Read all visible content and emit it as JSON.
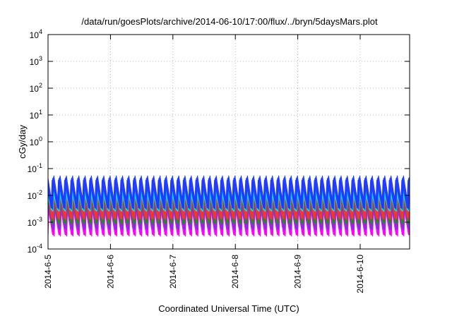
{
  "chart_data": {
    "type": "line",
    "title": "/data/run/goesPlots/archive/2014-06-10/17:00/flux/../bryn/5daysMars.plot",
    "xlabel": "Coordinated Universal Time (UTC)",
    "ylabel": "cGy/day",
    "yscale": "log",
    "ylim": [
      0.0001,
      10000
    ],
    "y_ticks": [
      {
        "value": 0.0001,
        "base": "10",
        "exp": "-4"
      },
      {
        "value": 0.001,
        "base": "10",
        "exp": "-3"
      },
      {
        "value": 0.01,
        "base": "10",
        "exp": "-2"
      },
      {
        "value": 0.1,
        "base": "10",
        "exp": "-1"
      },
      {
        "value": 1,
        "base": "10",
        "exp": "0"
      },
      {
        "value": 10,
        "base": "10",
        "exp": "1"
      },
      {
        "value": 100,
        "base": "10",
        "exp": "2"
      },
      {
        "value": 1000,
        "base": "10",
        "exp": "3"
      },
      {
        "value": 10000,
        "base": "10",
        "exp": "4"
      }
    ],
    "xlim": [
      "2014-06-05T00:00",
      "2014-06-10T19:00"
    ],
    "x_ticks": [
      "2014-6-5",
      "2014-6-6",
      "2014-6-7",
      "2014-6-8",
      "2014-6-9",
      "2014-6-10"
    ],
    "grid": true,
    "legend": "none",
    "oscillation_period_hours": 2.4,
    "series": [
      {
        "color": "#ff00ff",
        "min": 0.0003,
        "max": 0.008
      },
      {
        "color": "#8a2be2",
        "min": 0.0005,
        "max": 0.012
      },
      {
        "color": "#228b22",
        "min": 0.0008,
        "max": 0.02
      },
      {
        "color": "#ff3030",
        "min": 0.0012,
        "max": 0.03
      },
      {
        "color": "#00e5ee",
        "min": 0.0025,
        "max": 0.02
      },
      {
        "color": "#1e3cff",
        "min": 0.003,
        "max": 0.055
      }
    ]
  }
}
